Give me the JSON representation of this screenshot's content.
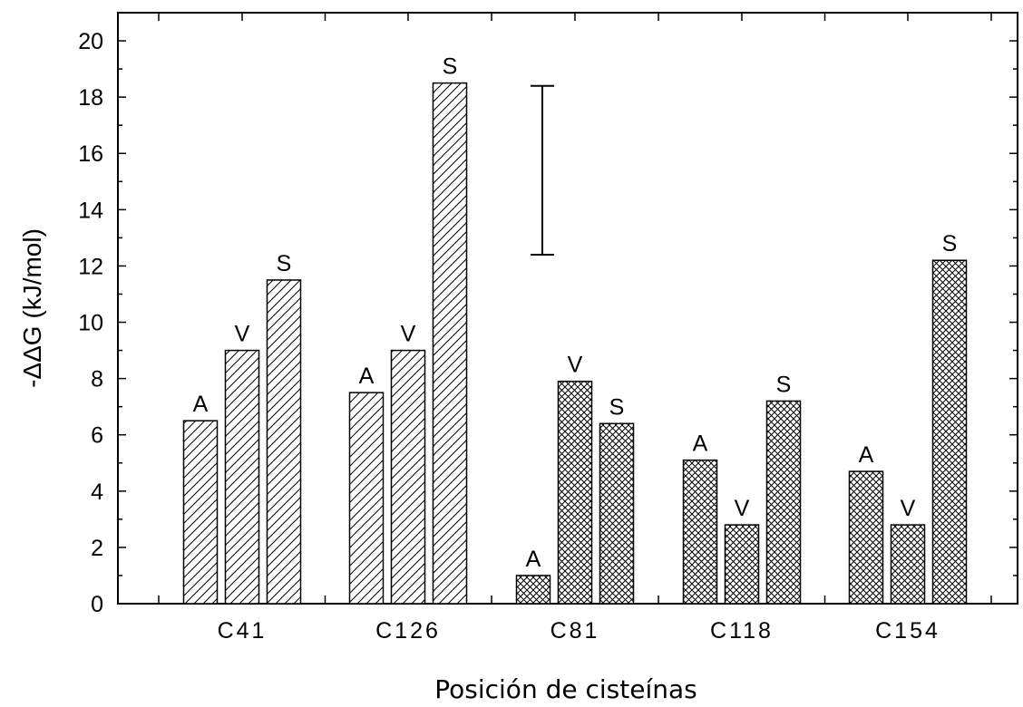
{
  "chart_data": {
    "type": "bar",
    "xlabel": "Posición de cisteínas",
    "ylabel": "-ΔΔG (kJ/mol)",
    "ylim": [
      0,
      21
    ],
    "yticks": [
      "0",
      "2",
      "4",
      "6",
      "8",
      "10",
      "12",
      "14",
      "16",
      "18",
      "20"
    ],
    "grid": false,
    "groups": [
      {
        "category": "C41",
        "pattern": "diagonal-hatch",
        "bars": [
          {
            "label": "A",
            "value": 6.5
          },
          {
            "label": "V",
            "value": 9.0
          },
          {
            "label": "S",
            "value": 11.5
          }
        ]
      },
      {
        "category": "C126",
        "pattern": "diagonal-hatch",
        "bars": [
          {
            "label": "A",
            "value": 7.5
          },
          {
            "label": "V",
            "value": 9.0
          },
          {
            "label": "S",
            "value": 18.5
          }
        ]
      },
      {
        "category": "C81",
        "pattern": "cross-hatch",
        "bars": [
          {
            "label": "A",
            "value": 1.0
          },
          {
            "label": "V",
            "value": 7.9
          },
          {
            "label": "S",
            "value": 6.4
          }
        ]
      },
      {
        "category": "C118",
        "pattern": "cross-hatch",
        "bars": [
          {
            "label": "A",
            "value": 5.1
          },
          {
            "label": "V",
            "value": 2.8
          },
          {
            "label": "S",
            "value": 7.2
          }
        ]
      },
      {
        "category": "C154",
        "pattern": "cross-hatch",
        "bars": [
          {
            "label": "A",
            "value": 4.7
          },
          {
            "label": "V",
            "value": 2.8
          },
          {
            "label": "S",
            "value": 12.2
          }
        ]
      }
    ],
    "error_bar": {
      "position": "between C126 and C81",
      "low": 12.4,
      "high": 18.4
    },
    "colors": {
      "bar_stroke": "#000000",
      "bar_fill": "#ffffff",
      "axis": "#000000"
    }
  }
}
